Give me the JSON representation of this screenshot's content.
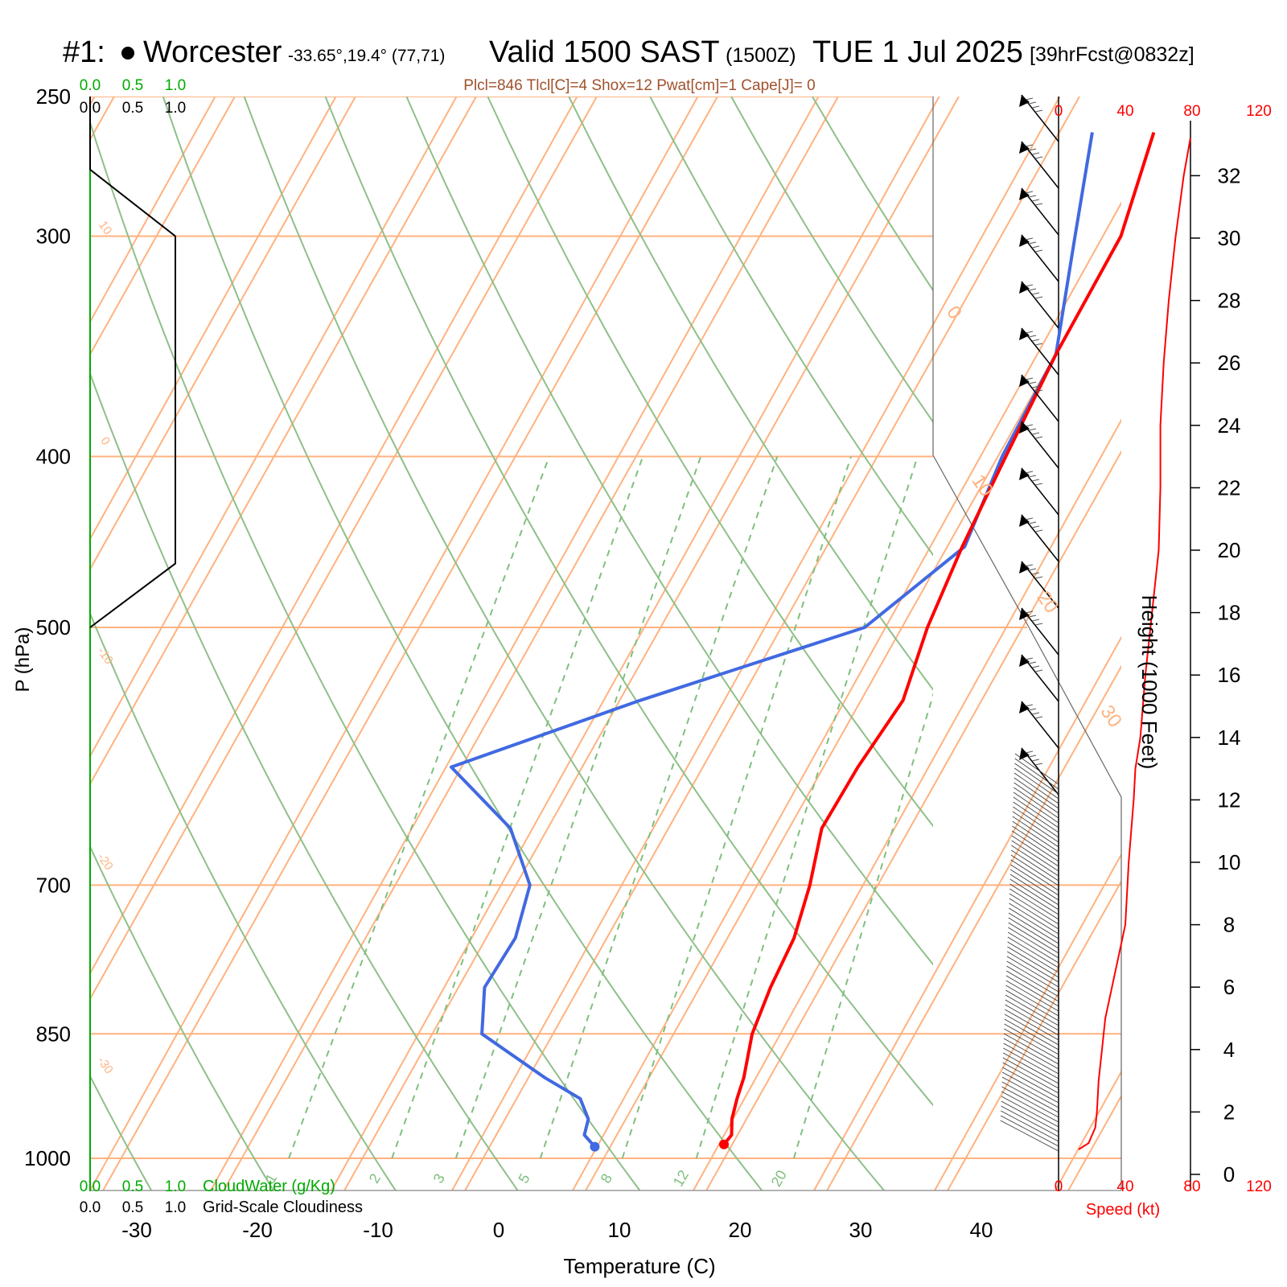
{
  "header": {
    "station_id": "#1:",
    "station_name": "Worcester",
    "station_coords": "-33.65°,19.4° (77,71)",
    "valid_label": "Valid 1500 SAST",
    "valid_z": "(1500Z)",
    "valid_date": "TUE 1 Jul 2025",
    "forecast_info": "[39hrFcst@0832z]"
  },
  "indices_line": "Plcl=846 Tlcl[C]=4 Shox=12 Pwat[cm]=1 Cape[J]= 0",
  "labels": {
    "cloudwater": "CloudWater (g/Kg)",
    "cloudiness": "Grid-Scale Cloudiness",
    "speed": "Speed (kt)",
    "height": "Height (1000 Feet)"
  },
  "colors": {
    "temperature": "#ff0000",
    "dewpoint": "#4169e1",
    "isotherm": "#ffb27f",
    "dry_adiabat": "#8fbf8a",
    "mixing_ratio": "#7fbf7f",
    "cloudwater": "#00aa00",
    "wind_speed": "#ff0000"
  },
  "chart_data": {
    "type": "skew-t",
    "xlabel": "Temperature (C)",
    "ylabel": "P (hPa)",
    "x_ticks": [
      "-30",
      "-20",
      "-10",
      "0",
      "10",
      "20",
      "30",
      "40"
    ],
    "pressure_ticks": [
      "250",
      "300",
      "400",
      "500",
      "700",
      "850",
      "1000"
    ],
    "isotherm_labels": [
      "10",
      "0",
      "-10",
      "-20",
      "-30",
      "0",
      "10",
      "20",
      "30"
    ],
    "mixing_ratio_labels": [
      "1",
      "2",
      "3",
      "5",
      "8",
      "12",
      "20"
    ],
    "height_ticks": [
      "0",
      "2",
      "4",
      "6",
      "8",
      "10",
      "12",
      "14",
      "16",
      "18",
      "20",
      "22",
      "24",
      "26",
      "28",
      "30",
      "32"
    ],
    "cloud_scale_ticks": [
      "0.0",
      "0.5",
      "1.0"
    ],
    "speed_ticks": [
      "0",
      "40",
      "80",
      "120"
    ],
    "temperature_profile_C": [
      {
        "p": 982,
        "t": 18.3
      },
      {
        "p": 970,
        "t": 18.5
      },
      {
        "p": 950,
        "t": 17.8
      },
      {
        "p": 925,
        "t": 17.3
      },
      {
        "p": 900,
        "t": 16.9
      },
      {
        "p": 850,
        "t": 15.6
      },
      {
        "p": 800,
        "t": 15.0
      },
      {
        "p": 750,
        "t": 14.7
      },
      {
        "p": 700,
        "t": 13.6
      },
      {
        "p": 650,
        "t": 12.0
      },
      {
        "p": 600,
        "t": 12.2
      },
      {
        "p": 550,
        "t": 12.9
      },
      {
        "p": 500,
        "t": 11.6
      },
      {
        "p": 450,
        "t": 10.8
      },
      {
        "p": 400,
        "t": 10.3
      },
      {
        "p": 350,
        "t": 9.8
      },
      {
        "p": 300,
        "t": 9.8
      },
      {
        "p": 262,
        "t": 7.8
      }
    ],
    "dewpoint_profile_C": [
      {
        "p": 985,
        "t": 7.7
      },
      {
        "p": 970,
        "t": 6.3
      },
      {
        "p": 950,
        "t": 5.9
      },
      {
        "p": 925,
        "t": 4.3
      },
      {
        "p": 900,
        "t": 0.4
      },
      {
        "p": 850,
        "t": -6.8
      },
      {
        "p": 800,
        "t": -8.7
      },
      {
        "p": 750,
        "t": -8.4
      },
      {
        "p": 700,
        "t": -9.6
      },
      {
        "p": 650,
        "t": -13.8
      },
      {
        "p": 600,
        "t": -21.5
      },
      {
        "p": 550,
        "t": -8.9
      },
      {
        "p": 500,
        "t": 6.4
      },
      {
        "p": 450,
        "t": 11.0
      },
      {
        "p": 400,
        "t": 10.0
      },
      {
        "p": 350,
        "t": 9.8
      },
      {
        "p": 300,
        "t": 6.0
      },
      {
        "p": 262,
        "t": 2.7
      }
    ],
    "wind_speed_profile": [
      {
        "h_kft": 0.8,
        "kt": 12
      },
      {
        "h_kft": 1.0,
        "kt": 18
      },
      {
        "h_kft": 1.5,
        "kt": 22
      },
      {
        "h_kft": 2.0,
        "kt": 23
      },
      {
        "h_kft": 3.0,
        "kt": 24
      },
      {
        "h_kft": 4.0,
        "kt": 26
      },
      {
        "h_kft": 5.0,
        "kt": 28
      },
      {
        "h_kft": 6.0,
        "kt": 32
      },
      {
        "h_kft": 7.0,
        "kt": 36
      },
      {
        "h_kft": 8.0,
        "kt": 40
      },
      {
        "h_kft": 9.0,
        "kt": 41
      },
      {
        "h_kft": 10.0,
        "kt": 42
      },
      {
        "h_kft": 12.0,
        "kt": 45
      },
      {
        "h_kft": 13.0,
        "kt": 46
      },
      {
        "h_kft": 14.0,
        "kt": 49
      },
      {
        "h_kft": 16.0,
        "kt": 52
      },
      {
        "h_kft": 18.0,
        "kt": 56
      },
      {
        "h_kft": 20.0,
        "kt": 60
      },
      {
        "h_kft": 22.0,
        "kt": 61
      },
      {
        "h_kft": 24.0,
        "kt": 61
      },
      {
        "h_kft": 26.0,
        "kt": 63
      },
      {
        "h_kft": 28.0,
        "kt": 66
      },
      {
        "h_kft": 30.0,
        "kt": 70
      },
      {
        "h_kft": 32.0,
        "kt": 75
      },
      {
        "h_kft": 33.2,
        "kt": 79
      }
    ],
    "cloudiness_profile": [
      {
        "p": 250,
        "v": 0.0
      },
      {
        "p": 275,
        "v": 0.0
      },
      {
        "p": 300,
        "v": 1.0
      },
      {
        "p": 320,
        "v": 1.0
      },
      {
        "p": 400,
        "v": 1.0
      },
      {
        "p": 450,
        "v": 1.0
      },
      {
        "p": 460,
        "v": 1.0
      },
      {
        "p": 500,
        "v": 0.0
      }
    ]
  }
}
